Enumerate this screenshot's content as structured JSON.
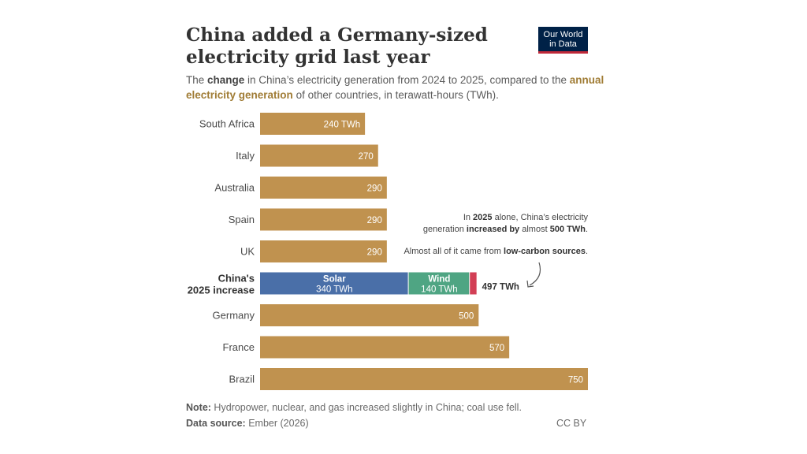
{
  "header": {
    "title": "China added a Germany-sized electricity grid last year",
    "logo_line1": "Our World",
    "logo_line2": "in Data",
    "subtitle_1": "The ",
    "subtitle_2": "change",
    "subtitle_3": " in China’s electricity generation from 2024 to 2025, compared to the ",
    "subtitle_4": "annual electricity generation",
    "subtitle_5": " of other countries, in terawatt-hours (TWh)."
  },
  "annotations": {
    "line1_a": "In ",
    "line1_b": "2025",
    "line1_c": " alone, China’s electricity",
    "line2_a": "generation ",
    "line2_b": "increased by",
    "line2_c": " almost ",
    "line2_d": "500 TWh",
    "line2_e": ".",
    "line3_a": "Almost all of it came from ",
    "line3_b": "low-carbon sources",
    "line3_c": "."
  },
  "footer": {
    "note_label": "Note:",
    "note_text": " Hydropower, nuclear, and gas increased slightly in China; coal use fell.",
    "source_label": "Data source:",
    "source_text": " Ember (2026)",
    "license": "CC BY"
  },
  "colors": {
    "bar": "#c0924f",
    "solar": "#4a6fa8",
    "wind": "#4fa583",
    "other": "#d23f55"
  },
  "chart_data": {
    "type": "bar",
    "orientation": "horizontal",
    "xlim": [
      0,
      750
    ],
    "unit": "TWh",
    "categories": [
      "South Africa",
      "Italy",
      "Australia",
      "Spain",
      "UK",
      "China's 2025 increase",
      "Germany",
      "France",
      "Brazil"
    ],
    "values": [
      240,
      270,
      290,
      290,
      290,
      497,
      500,
      570,
      750
    ],
    "value_labels": [
      "240 TWh",
      "270",
      "290",
      "290",
      "290",
      "497 TWh",
      "500",
      "570",
      "750"
    ],
    "stacked_category": "China's 2025 increase",
    "stacked_segments": [
      {
        "name": "Solar",
        "value": 340,
        "label": "340 TWh"
      },
      {
        "name": "Wind",
        "value": 140,
        "label": "140 TWh"
      },
      {
        "name": "",
        "value": 17,
        "label": ""
      }
    ],
    "stacked_total_label": "497 TWh"
  }
}
